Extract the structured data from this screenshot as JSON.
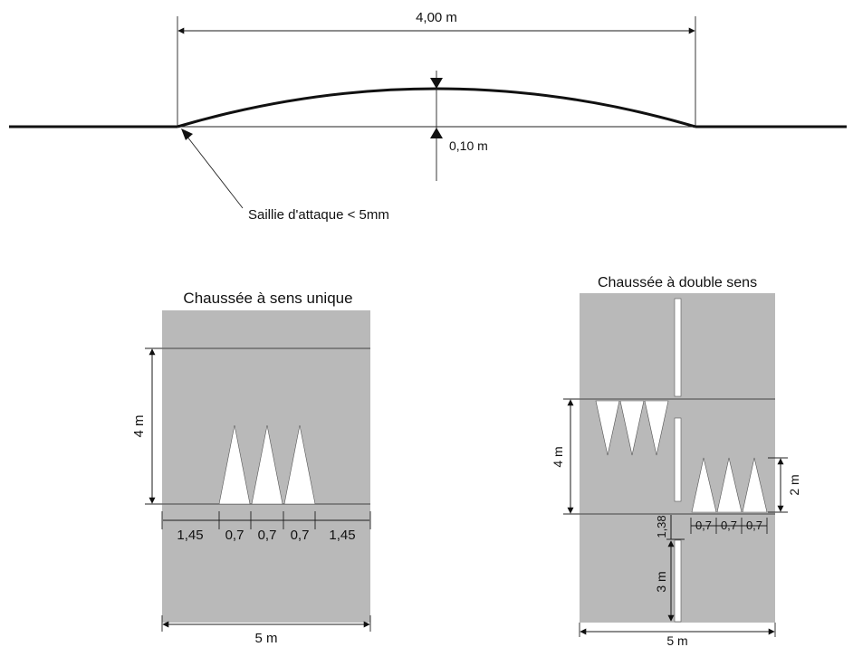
{
  "profile": {
    "length_label": "4,00 m",
    "height_label": "0,10 m",
    "note": "Saillie d'attaque < 5mm"
  },
  "one_way": {
    "title": "Chaussée à sens unique",
    "length_label": "4 m",
    "width_label": "5 m",
    "spacing_labels": [
      "1,45",
      "0,7",
      "0,7",
      "0,7",
      "1,45"
    ]
  },
  "two_way": {
    "title": "Chaussée à double sens",
    "length_label": "4 m",
    "gap_label": "1,38",
    "dash_label": "3 m",
    "triangle_length_label": "2 m",
    "width_label": "5 m",
    "spacing_labels": [
      "0,7",
      "0,7",
      "0,7"
    ]
  },
  "colors": {
    "pavement": "#b9b9b9",
    "marking": "#ffffff",
    "ink": "#111111"
  }
}
